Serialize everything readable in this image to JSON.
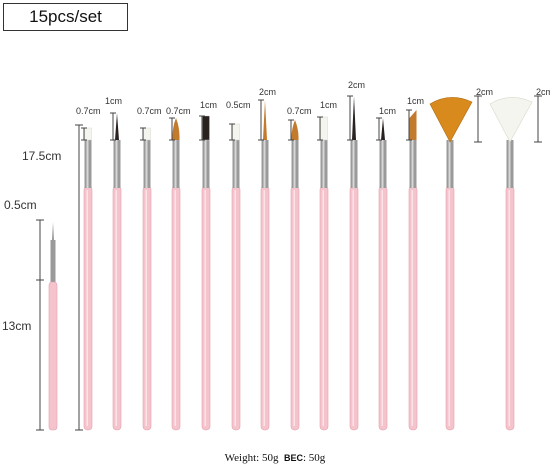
{
  "title": "15pcs/set",
  "dimensions": {
    "total_length": "17.5cm",
    "handle_length": "13cm",
    "detail_tip": "0.5cm"
  },
  "brushes": [
    {
      "label": "0.7cm",
      "head": "flat-white"
    },
    {
      "label": "1cm",
      "head": "liner"
    },
    {
      "label": "0.7cm",
      "head": "flat-white"
    },
    {
      "label": "0.7cm",
      "head": "round-brown"
    },
    {
      "label": "1cm",
      "head": "flat-dark"
    },
    {
      "label": "0.5cm",
      "head": "flat-white"
    },
    {
      "label": "2cm",
      "head": "long-liner-brown"
    },
    {
      "label": "0.7cm",
      "head": "round-brown"
    },
    {
      "label": "1cm",
      "head": "flat-white"
    },
    {
      "label": "2cm",
      "head": "long-liner-dark"
    },
    {
      "label": "1cm",
      "head": "liner"
    },
    {
      "label": "1cm",
      "head": "angled-brown"
    },
    {
      "label": "2cm",
      "head": "fan-orange"
    },
    {
      "label": "2cm",
      "head": "fan-white"
    }
  ],
  "colors": {
    "handle": "#f4c3cc",
    "handle_shade": "#e5a2ae",
    "ferrule": "#9a9a9a",
    "bristle_white": "#f5f5ef",
    "bristle_brown": "#c27a2c",
    "bristle_orange": "#d88a1c",
    "bristle_dark": "#2a2220"
  },
  "footer": {
    "weight_label": "Weight",
    "weight_value": ": 50g",
    "bec_label": "BEC",
    "bec_value": ": 50g"
  }
}
